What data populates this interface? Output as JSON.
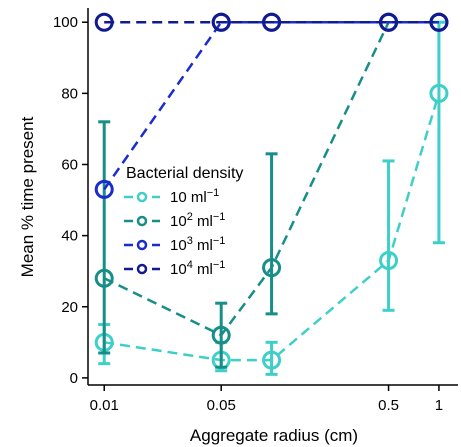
{
  "chart_data": {
    "type": "line",
    "xlabel": "Aggregate radius (cm)",
    "ylabel": "Mean % time present",
    "x_scale": "log",
    "xlim": [
      0.008,
      1.3
    ],
    "ylim": [
      -2,
      104
    ],
    "x_ticks": [
      0.01,
      0.05,
      0.5,
      1
    ],
    "x_tick_labels": [
      "0.01",
      "0.05",
      "0.5",
      "1"
    ],
    "y_ticks": [
      0,
      20,
      40,
      60,
      80,
      100
    ],
    "y_tick_labels": [
      "0",
      "20",
      "40",
      "60",
      "80",
      "100"
    ],
    "grid": false,
    "legend": {
      "title": "Bacterial density",
      "placement": "center-left",
      "entries": [
        {
          "base": "10",
          "exp": "",
          "unit": " ml",
          "unit_exp": "−1"
        },
        {
          "base": "10",
          "exp": "2",
          "unit": " ml",
          "unit_exp": "−1"
        },
        {
          "base": "10",
          "exp": "3",
          "unit": " ml",
          "unit_exp": "−1"
        },
        {
          "base": "10",
          "exp": "4",
          "unit": " ml",
          "unit_exp": "−1"
        }
      ]
    },
    "series": [
      {
        "color": "#3ecfc8",
        "x": [
          0.01,
          0.05,
          0.1,
          0.5,
          1
        ],
        "y": [
          10,
          5,
          5,
          33,
          80
        ],
        "err_low": [
          4,
          2,
          1,
          19,
          38
        ],
        "err_high": [
          15,
          10,
          10,
          61,
          100
        ]
      },
      {
        "color": "#178e87",
        "x": [
          0.01,
          0.05,
          0.1,
          0.5,
          1
        ],
        "y": [
          28,
          12,
          31,
          100,
          100
        ],
        "err_low": [
          7,
          3,
          18,
          100,
          100
        ],
        "err_high": [
          72,
          21,
          63,
          100,
          100
        ]
      },
      {
        "color": "#1a2ccc",
        "x": [
          0.01,
          0.05,
          0.1,
          0.5,
          1
        ],
        "y": [
          53,
          100,
          100,
          100,
          100
        ]
      },
      {
        "color": "#111a8f",
        "x": [
          0.01,
          0.05,
          0.1,
          0.5,
          1
        ],
        "y": [
          100,
          100,
          100,
          100,
          100
        ]
      }
    ]
  }
}
